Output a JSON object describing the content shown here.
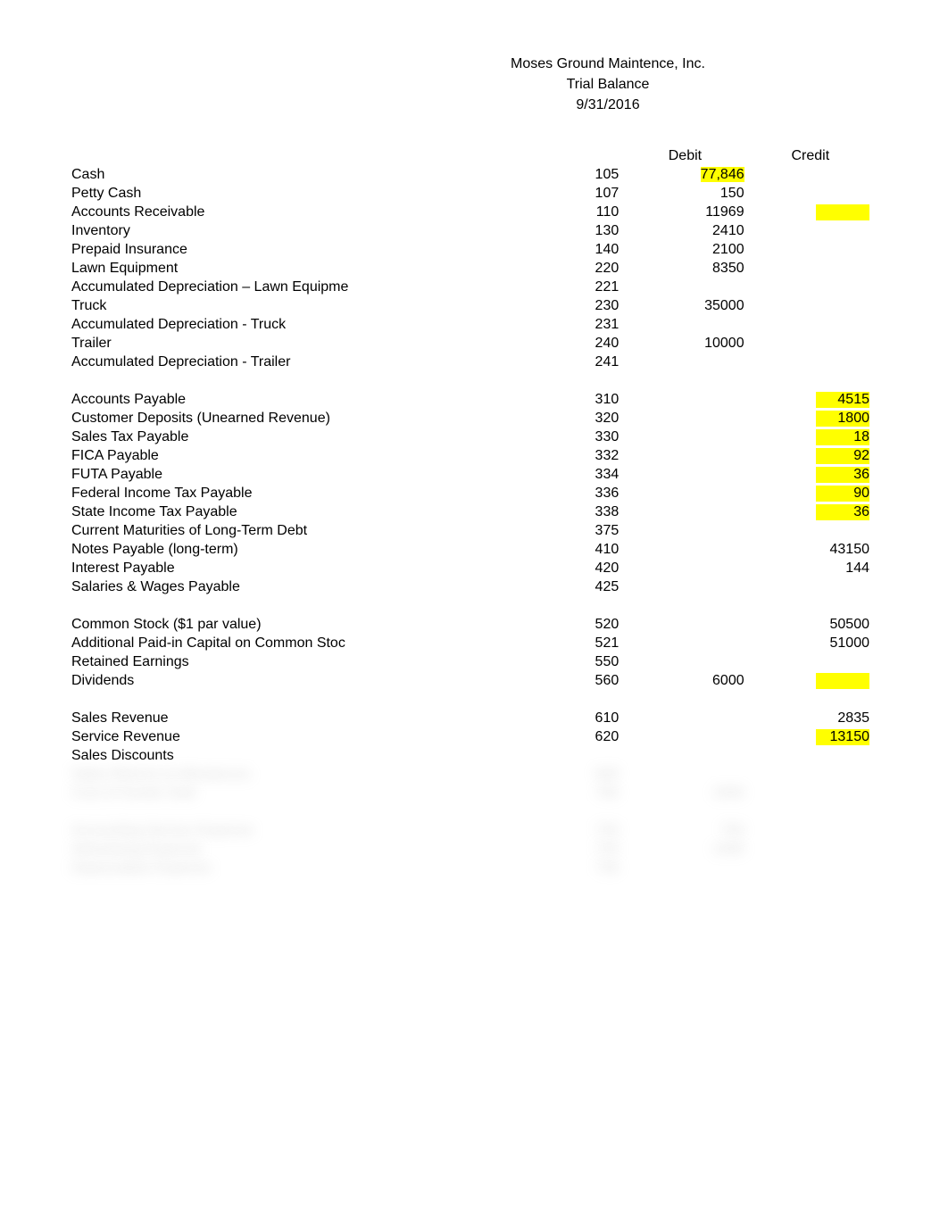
{
  "header": {
    "company": "Moses Ground Maintence, Inc.",
    "title": "Trial Balance",
    "date": "9/31/2016"
  },
  "columns": {
    "debit": "Debit",
    "credit": "Credit"
  },
  "rows": [
    {
      "name": "Cash",
      "code": "105",
      "debit": "77,846",
      "debit_hl": true
    },
    {
      "name": "Petty Cash",
      "code": "107",
      "debit": "150"
    },
    {
      "name": "Accounts Receivable",
      "code": "110",
      "debit": "11969",
      "credit_hl": true
    },
    {
      "name": "Inventory",
      "code": "130",
      "debit": "2410"
    },
    {
      "name": "Prepaid Insurance",
      "code": "140",
      "debit": "2100"
    },
    {
      "name": "Lawn Equipment",
      "code": "220",
      "debit": "8350"
    },
    {
      "name": "Accumulated Depreciation – Lawn Equipme",
      "code": "221"
    },
    {
      "name": "Truck",
      "code": "230",
      "debit": "35000"
    },
    {
      "name": " Accumulated Depreciation - Truck",
      "code": "231"
    },
    {
      "name": "Trailer",
      "code": "240",
      "debit": "10000"
    },
    {
      "name": "Accumulated Depreciation - Trailer",
      "code": "241"
    },
    {
      "spacer": true
    },
    {
      "name": "Accounts Payable",
      "code": "310",
      "credit": "4515",
      "credit_hl": true
    },
    {
      "name": "Customer Deposits (Unearned Revenue)",
      "code": "320",
      "credit": "1800",
      "credit_hl": true
    },
    {
      "name": "Sales Tax Payable",
      "code": "330",
      "credit": "18",
      "credit_hl": true
    },
    {
      "name": "FICA Payable",
      "code": "332",
      "credit": "92",
      "credit_hl": true
    },
    {
      "name": "FUTA Payable",
      "code": "334",
      "credit": "36",
      "credit_hl": true
    },
    {
      "name": "Federal Income Tax Payable",
      "code": "336",
      "credit": "90",
      "credit_hl": true
    },
    {
      "name": "State Income Tax Payable",
      "code": "338",
      "credit": "36",
      "credit_hl": true
    },
    {
      "name": "Current Maturities of Long-Term Debt",
      "code": "375"
    },
    {
      "name": "Notes Payable (long-term)",
      "code": "410",
      "credit": "43150"
    },
    {
      "name": "Interest Payable",
      "code": "420",
      "credit": "144"
    },
    {
      "name": "Salaries & Wages Payable",
      "code": "425"
    },
    {
      "spacer": true
    },
    {
      "name": "Common Stock ($1 par value)",
      "code": "520",
      "credit": "50500"
    },
    {
      "name": "Additional Paid-in Capital on Common Stoc",
      "code": "521",
      "credit": "51000"
    },
    {
      "name": "Retained Earnings",
      "code": "550"
    },
    {
      "name": "Dividends",
      "code": "560",
      "debit": "6000",
      "credit_hl": true
    },
    {
      "spacer": true
    },
    {
      "name": "Sales Revenue",
      "code": "610",
      "credit": "2835"
    },
    {
      "name": "Service Revenue",
      "code": "620",
      "credit": "13150",
      "credit_hl": true
    },
    {
      "name": "Sales Discounts",
      "code": ""
    }
  ],
  "blurred_rows": [
    {
      "name": "Sales Returns & Allowances",
      "code": "640"
    },
    {
      "name": "Cost of Goods Sold",
      "code": "700",
      "debit": "1500"
    },
    {
      "spacer": true
    },
    {
      "name": "Accounting Service Expense",
      "code": "720",
      "debit": "750"
    },
    {
      "name": "Advertising Expense",
      "code": "725",
      "debit": "1400"
    },
    {
      "name": "Depreciation Expense",
      "code": "730"
    }
  ],
  "style": {
    "background_color": "#ffffff",
    "text_color": "#000000",
    "highlight_color": "#ffff00",
    "font_family": "Verdana, Geneva, sans-serif",
    "font_size_pt": 12
  }
}
